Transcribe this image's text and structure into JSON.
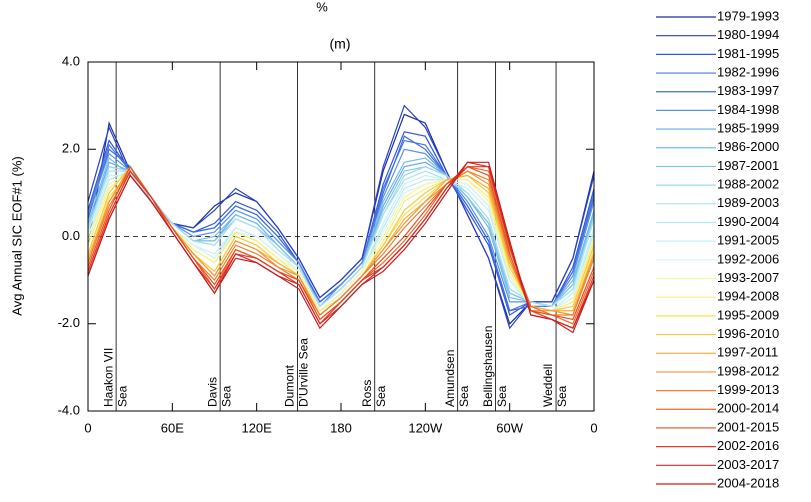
{
  "chart_data": {
    "type": "line",
    "title": "%",
    "subtitle": "(m)",
    "y_label": "Avg Annual SIC EOF#1 (%)",
    "x": [
      0,
      15,
      30,
      45,
      60,
      75,
      90,
      105,
      120,
      135,
      150,
      165,
      180,
      195,
      210,
      225,
      240,
      255,
      270,
      285,
      300,
      315,
      330,
      345,
      360
    ],
    "xlim": [
      0,
      360
    ],
    "ylim": [
      -4,
      4
    ],
    "xticks": [
      0,
      {
        "value": 60,
        "label": "60E"
      },
      {
        "value": 120,
        "label": "120E"
      },
      180,
      {
        "value": 240,
        "label": "120W"
      },
      {
        "value": 300,
        "label": "60W"
      },
      {
        "value": 360,
        "label": "0"
      }
    ],
    "yticks": [
      {
        "value": 4,
        "label": "4.0"
      },
      {
        "value": 2,
        "label": "2.0"
      },
      {
        "value": 0,
        "label": "0.0"
      },
      {
        "value": -2,
        "label": "-2.0"
      },
      {
        "value": -4,
        "label": "-4.0"
      }
    ],
    "reference_line": 0,
    "annotations": [
      {
        "x": 20,
        "lines": [
          "Haakon VII",
          "Sea"
        ]
      },
      {
        "x": 94,
        "lines": [
          "Davis",
          "Sea"
        ]
      },
      {
        "x": 149,
        "lines": [
          "Dumont",
          "D'Urville Sea"
        ]
      },
      {
        "x": 204,
        "lines": [
          "Ross",
          "Sea"
        ]
      },
      {
        "x": 263,
        "lines": [
          "Amundsen",
          "Sea"
        ]
      },
      {
        "x": 290,
        "lines": [
          "Bellingshausen",
          "Sea"
        ]
      },
      {
        "x": 333,
        "lines": [
          "Weddell",
          "Sea"
        ]
      }
    ],
    "series": [
      {
        "name": "1979-1993",
        "color": "#1a2fa0",
        "values": [
          -0.2,
          2.6,
          1.5,
          0.8,
          0.3,
          0.2,
          0.7,
          1.0,
          0.8,
          0.2,
          -0.5,
          -1.4,
          -1.0,
          -0.5,
          1.5,
          2.8,
          2.6,
          1.5,
          0.5,
          -0.5,
          -2.0,
          -1.5,
          -1.5,
          -0.5,
          1.5
        ]
      },
      {
        "name": "1980-1994",
        "color": "#2a40c8",
        "values": [
          0.8,
          2.5,
          1.4,
          0.8,
          0.3,
          0.2,
          0.6,
          1.1,
          0.8,
          0.2,
          -0.5,
          -1.4,
          -1.0,
          -0.5,
          1.6,
          3.0,
          2.5,
          1.5,
          0.5,
          -0.5,
          -2.1,
          -1.5,
          -1.5,
          -0.5,
          1.4
        ]
      },
      {
        "name": "1981-1995",
        "color": "#3355dd",
        "values": [
          0.6,
          2.2,
          1.5,
          0.8,
          0.3,
          0.1,
          0.3,
          0.8,
          0.6,
          0.1,
          -0.6,
          -1.5,
          -1.1,
          -0.6,
          1.2,
          2.4,
          2.3,
          1.4,
          0.6,
          -0.2,
          -1.8,
          -1.5,
          -1.6,
          -0.7,
          1.1
        ]
      },
      {
        "name": "1982-1996",
        "color": "#4a78e0",
        "values": [
          0.5,
          2.1,
          1.5,
          0.8,
          0.3,
          0.1,
          0.2,
          0.7,
          0.5,
          0.0,
          -0.6,
          -1.5,
          -1.1,
          -0.6,
          1.1,
          2.2,
          2.1,
          1.4,
          0.7,
          -0.1,
          -1.7,
          -1.5,
          -1.6,
          -0.8,
          1.0
        ]
      },
      {
        "name": "1983-1997",
        "color": "#3b6fe0",
        "values": [
          0.4,
          2.0,
          1.6,
          0.8,
          0.3,
          0.1,
          0.2,
          0.7,
          0.5,
          0.0,
          -0.6,
          -1.5,
          -1.1,
          -0.6,
          1.0,
          2.3,
          2.0,
          1.4,
          0.7,
          -0.1,
          -1.7,
          -1.6,
          -1.6,
          -0.8,
          0.9
        ]
      },
      {
        "name": "1984-1998",
        "color": "#5a90e8",
        "values": [
          0.5,
          1.9,
          1.5,
          0.8,
          0.3,
          0.0,
          0.1,
          0.6,
          0.4,
          -0.1,
          -0.6,
          -1.6,
          -1.1,
          -0.6,
          0.9,
          2.0,
          1.9,
          1.4,
          0.8,
          0.0,
          -1.5,
          -1.5,
          -1.6,
          -0.9,
          0.8
        ]
      },
      {
        "name": "1985-1999",
        "color": "#6aa8ee",
        "values": [
          0.2,
          1.7,
          1.5,
          0.8,
          0.3,
          -0.1,
          -0.1,
          0.5,
          0.3,
          -0.2,
          -0.7,
          -1.6,
          -1.2,
          -0.7,
          0.7,
          1.6,
          1.7,
          1.4,
          0.9,
          0.3,
          -1.3,
          -1.5,
          -1.6,
          -1.1,
          0.6
        ]
      },
      {
        "name": "1986-2000",
        "color": "#74bde8",
        "values": [
          0.3,
          1.8,
          1.4,
          0.8,
          0.3,
          -0.1,
          0.0,
          0.5,
          0.3,
          -0.2,
          -0.7,
          -1.6,
          -1.2,
          -0.7,
          0.8,
          1.7,
          1.8,
          1.4,
          0.9,
          0.2,
          -1.4,
          -1.5,
          -1.6,
          -1.0,
          0.6
        ]
      },
      {
        "name": "1987-2001",
        "color": "#80c8e0",
        "values": [
          0.2,
          1.6,
          1.5,
          0.8,
          0.3,
          -0.1,
          -0.1,
          0.4,
          0.2,
          -0.2,
          -0.7,
          -1.6,
          -1.2,
          -0.7,
          0.6,
          1.5,
          1.6,
          1.4,
          0.9,
          0.3,
          -1.3,
          -1.5,
          -1.6,
          -1.1,
          0.5
        ]
      },
      {
        "name": "1988-2002",
        "color": "#9fd8ee",
        "values": [
          0.1,
          1.6,
          1.5,
          0.8,
          0.3,
          -0.1,
          -0.2,
          0.4,
          0.2,
          -0.3,
          -0.7,
          -1.6,
          -1.2,
          -0.7,
          0.5,
          1.4,
          1.6,
          1.4,
          1.0,
          0.4,
          -1.2,
          -1.5,
          -1.6,
          -1.2,
          0.4
        ]
      },
      {
        "name": "1989-2003",
        "color": "#a8e0f0",
        "values": [
          0.2,
          1.5,
          1.5,
          0.9,
          0.3,
          -0.1,
          -0.2,
          0.4,
          0.2,
          -0.3,
          -0.7,
          -1.6,
          -1.2,
          -0.7,
          0.5,
          1.3,
          1.5,
          1.3,
          1.0,
          0.4,
          -1.2,
          -1.5,
          -1.6,
          -1.2,
          0.4
        ]
      },
      {
        "name": "1990-2004",
        "color": "#b8e8f5",
        "values": [
          0.0,
          1.3,
          1.5,
          0.9,
          0.2,
          -0.2,
          -0.5,
          0.2,
          0.0,
          -0.4,
          -0.8,
          -1.7,
          -1.3,
          -0.8,
          0.2,
          1.1,
          1.3,
          1.3,
          1.2,
          0.7,
          -1.0,
          -1.6,
          -1.7,
          -1.4,
          0.1
        ]
      },
      {
        "name": "1991-2005",
        "color": "#c5f0f5",
        "values": [
          0.1,
          1.4,
          1.4,
          0.9,
          0.2,
          -0.2,
          -0.4,
          0.2,
          0.0,
          -0.4,
          -0.8,
          -1.7,
          -1.3,
          -0.8,
          0.3,
          1.2,
          1.4,
          1.3,
          1.1,
          0.6,
          -1.0,
          -1.6,
          -1.7,
          -1.3,
          0.2
        ]
      },
      {
        "name": "1992-2006",
        "color": "#d8f4ee",
        "values": [
          0.0,
          1.2,
          1.5,
          0.9,
          0.2,
          -0.2,
          -0.5,
          0.1,
          0.0,
          -0.4,
          -0.8,
          -1.7,
          -1.3,
          -0.8,
          0.1,
          1.0,
          1.2,
          1.3,
          1.2,
          0.7,
          -0.9,
          -1.6,
          -1.7,
          -1.4,
          0.0
        ]
      },
      {
        "name": "1993-2007",
        "color": "#f5f5a8",
        "values": [
          -0.1,
          1.2,
          1.5,
          0.9,
          0.2,
          -0.3,
          -0.6,
          0.1,
          -0.1,
          -0.5,
          -0.8,
          -1.7,
          -1.3,
          -0.8,
          0.0,
          0.9,
          1.2,
          1.3,
          1.3,
          0.8,
          -0.9,
          -1.6,
          -1.7,
          -1.5,
          0.0
        ]
      },
      {
        "name": "1994-2008",
        "color": "#f8ee80",
        "values": [
          -0.2,
          1.1,
          1.5,
          0.9,
          0.2,
          -0.3,
          -0.6,
          0.1,
          -0.1,
          -0.5,
          -0.9,
          -1.7,
          -1.4,
          -0.9,
          -0.1,
          0.8,
          1.1,
          1.3,
          1.3,
          0.9,
          -0.8,
          -1.6,
          -1.7,
          -1.5,
          -0.1
        ]
      },
      {
        "name": "1995-2009",
        "color": "#f8e050",
        "values": [
          -0.5,
          0.9,
          1.5,
          0.9,
          0.2,
          -0.4,
          -0.8,
          0.0,
          -0.2,
          -0.6,
          -0.9,
          -1.8,
          -1.4,
          -0.9,
          -0.2,
          0.5,
          0.9,
          1.3,
          1.4,
          1.1,
          -0.6,
          -1.6,
          -1.7,
          -1.7,
          -0.3
        ]
      },
      {
        "name": "1996-2010",
        "color": "#f8c840",
        "values": [
          -0.4,
          1.0,
          1.6,
          0.9,
          0.2,
          -0.4,
          -0.8,
          0.0,
          -0.2,
          -0.6,
          -0.9,
          -1.8,
          -1.4,
          -0.9,
          -0.2,
          0.6,
          1.0,
          1.3,
          1.4,
          1.0,
          -0.7,
          -1.6,
          -1.7,
          -1.6,
          -0.2
        ]
      },
      {
        "name": "1997-2011",
        "color": "#f5b040",
        "values": [
          -0.5,
          0.8,
          1.5,
          0.9,
          0.2,
          -0.4,
          -0.9,
          -0.1,
          -0.3,
          -0.6,
          -0.9,
          -1.8,
          -1.4,
          -0.9,
          -0.3,
          0.4,
          0.8,
          1.3,
          1.4,
          1.1,
          -0.6,
          -1.6,
          -1.7,
          -1.7,
          -0.4
        ]
      },
      {
        "name": "1998-2012",
        "color": "#f29638",
        "values": [
          -0.6,
          0.8,
          1.6,
          0.9,
          0.2,
          -0.4,
          -0.9,
          -0.1,
          -0.3,
          -0.7,
          -0.9,
          -1.8,
          -1.4,
          -0.9,
          -0.3,
          0.3,
          0.8,
          1.2,
          1.5,
          1.2,
          -0.5,
          -1.7,
          -1.7,
          -1.8,
          -0.4
        ]
      },
      {
        "name": "1999-2013",
        "color": "#ee8030",
        "values": [
          -0.6,
          0.7,
          1.5,
          0.9,
          0.2,
          -0.5,
          -1.0,
          -0.2,
          -0.4,
          -0.7,
          -1.0,
          -1.8,
          -1.4,
          -0.9,
          -0.4,
          0.2,
          0.7,
          1.2,
          1.5,
          1.3,
          -0.5,
          -1.7,
          -1.8,
          -1.8,
          -0.5
        ]
      },
      {
        "name": "2000-2014",
        "color": "#ec6a28",
        "values": [
          -0.8,
          0.5,
          1.5,
          0.9,
          0.2,
          -0.5,
          -1.2,
          -0.3,
          -0.5,
          -0.8,
          -1.0,
          -1.9,
          -1.5,
          -1.0,
          -0.6,
          -0.1,
          0.5,
          1.2,
          1.6,
          1.5,
          -0.3,
          -1.6,
          -1.8,
          -2.0,
          -0.8
        ]
      },
      {
        "name": "2001-2015",
        "color": "#e85020",
        "values": [
          -0.7,
          0.6,
          1.6,
          0.9,
          0.2,
          -0.5,
          -1.1,
          -0.3,
          -0.5,
          -0.8,
          -1.0,
          -1.9,
          -1.5,
          -1.0,
          -0.5,
          0.0,
          0.6,
          1.2,
          1.6,
          1.4,
          -0.4,
          -1.7,
          -1.8,
          -1.9,
          -0.7
        ]
      },
      {
        "name": "2002-2016",
        "color": "#e03828",
        "values": [
          -0.8,
          0.5,
          1.5,
          0.9,
          0.1,
          -0.6,
          -1.2,
          -0.4,
          -0.5,
          -0.8,
          -1.1,
          -2.0,
          -1.5,
          -1.0,
          -0.7,
          -0.2,
          0.4,
          1.1,
          1.6,
          1.6,
          -0.2,
          -1.7,
          -1.9,
          -2.1,
          -0.9
        ]
      },
      {
        "name": "2003-2017",
        "color": "#d42828",
        "values": [
          -0.9,
          0.4,
          1.4,
          0.8,
          0.1,
          -0.6,
          -1.3,
          -0.4,
          -0.6,
          -0.9,
          -1.1,
          -2.0,
          -1.6,
          -1.1,
          -0.7,
          -0.2,
          0.4,
          1.1,
          1.7,
          1.6,
          -0.2,
          -1.8,
          -1.9,
          -2.1,
          -1.0
        ]
      },
      {
        "name": "2004-2018",
        "color": "#c81e1e",
        "values": [
          -0.9,
          0.4,
          1.4,
          0.8,
          0.1,
          -0.6,
          -1.3,
          -0.5,
          -0.6,
          -0.9,
          -1.2,
          -2.1,
          -1.6,
          -1.1,
          -0.8,
          -0.3,
          0.3,
          1.0,
          1.7,
          1.7,
          -0.1,
          -1.8,
          -1.9,
          -2.2,
          -1.0
        ]
      }
    ]
  }
}
